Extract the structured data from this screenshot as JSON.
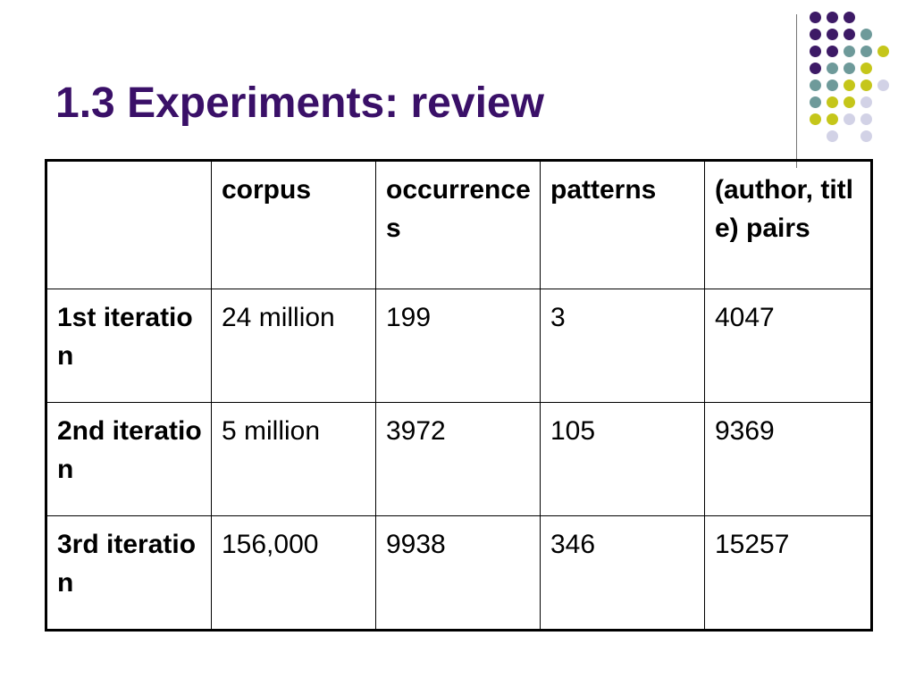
{
  "slide": {
    "title": "1.3 Experiments: review"
  },
  "colors": {
    "title": "#3a1068",
    "dot_purple": "#3d1a66",
    "dot_teal": "#6e9a9a",
    "dot_lime": "#c5c61a",
    "dot_lavender": "#d2d2e6"
  },
  "decoration": {
    "dot_pattern": [
      [
        "purple",
        "purple",
        "purple",
        "",
        ""
      ],
      [
        "purple",
        "purple",
        "purple",
        "teal",
        ""
      ],
      [
        "purple",
        "purple",
        "teal",
        "teal",
        "lime"
      ],
      [
        "purple",
        "teal",
        "teal",
        "lime",
        ""
      ],
      [
        "teal",
        "teal",
        "lime",
        "lime",
        "lavender"
      ],
      [
        "teal",
        "lime",
        "lime",
        "lavender",
        ""
      ],
      [
        "lime",
        "lime",
        "lavender",
        "lavender",
        ""
      ],
      [
        "",
        "lavender",
        "",
        "lavender",
        ""
      ]
    ]
  },
  "table": {
    "headers": [
      "",
      "corpus",
      "occurrences",
      "patterns",
      "(author, title) pairs"
    ],
    "rows": [
      {
        "label": "1st iteration",
        "corpus": "24 million",
        "occurrences": "199",
        "patterns": "3",
        "pairs": "4047"
      },
      {
        "label": "2nd iteration",
        "corpus": "5 million",
        "occurrences": "3972",
        "patterns": "105",
        "pairs": "9369"
      },
      {
        "label": "3rd iteration",
        "corpus": "156,000",
        "occurrences": "9938",
        "patterns": "346",
        "pairs": "15257"
      }
    ]
  }
}
